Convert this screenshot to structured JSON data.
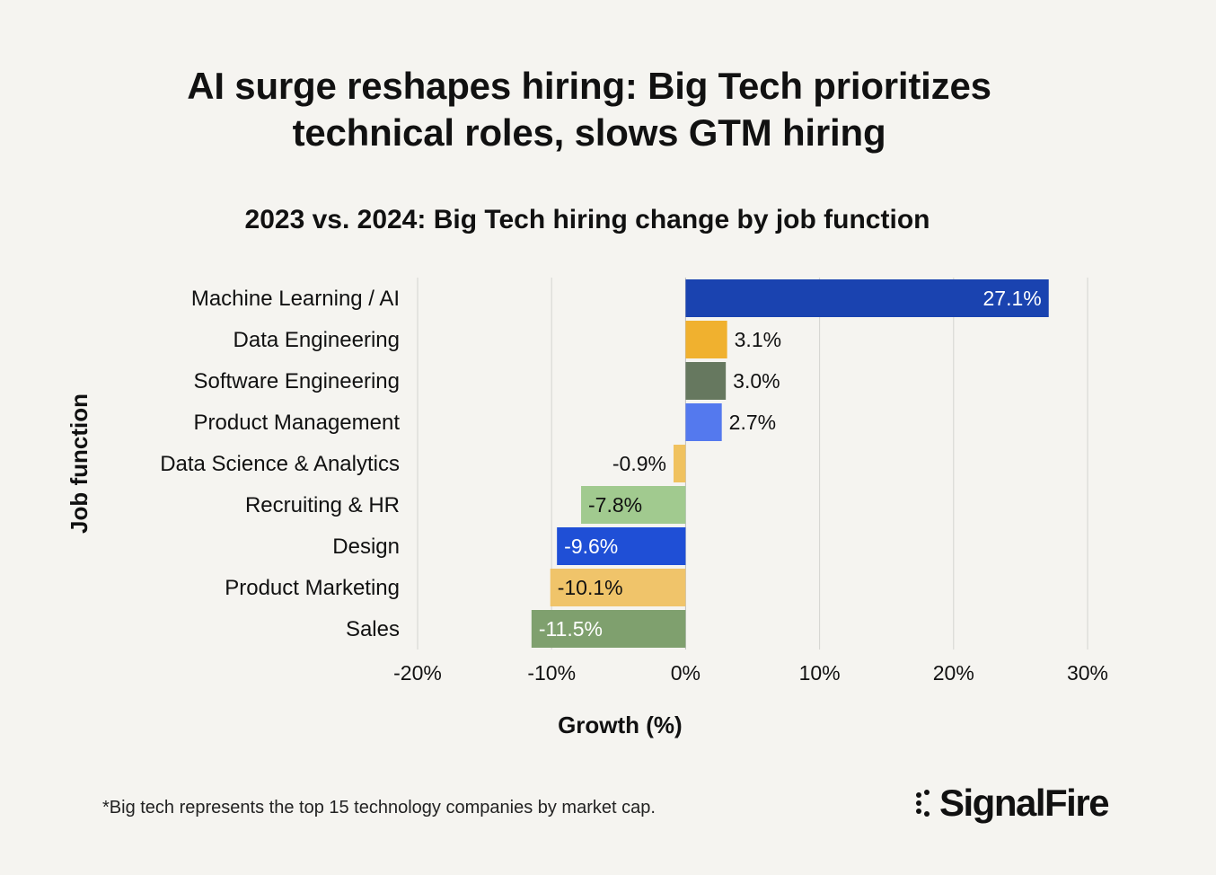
{
  "title_line1": "AI surge reshapes hiring: Big Tech prioritizes",
  "title_line2": "technical roles, slows GTM hiring",
  "subtitle": "2023 vs. 2024: Big Tech hiring change by job function",
  "footnote": "*Big tech represents the top 15 technology companies by market cap.",
  "logo_text": "SignalFire",
  "chart_data": {
    "type": "bar",
    "orientation": "horizontal",
    "xlabel": "Growth (%)",
    "ylabel": "Job function",
    "xlim": [
      -20,
      30
    ],
    "xticks": [
      "-20%",
      "-10%",
      "0%",
      "10%",
      "20%",
      "30%"
    ],
    "xtick_values": [
      -20,
      -10,
      0,
      10,
      20,
      30
    ],
    "grid": "vertical",
    "categories": [
      "Machine Learning / AI",
      "Data Engineering",
      "Software Engineering",
      "Product Management",
      "Data Science & Analytics",
      "Recruiting & HR",
      "Design",
      "Product Marketing",
      "Sales"
    ],
    "values": [
      27.1,
      3.1,
      3.0,
      2.7,
      -0.9,
      -7.8,
      -9.6,
      -10.1,
      -11.5
    ],
    "labels": [
      "27.1%",
      "3.1%",
      "3.0%",
      "2.7%",
      "-0.9%",
      "-7.8%",
      "-9.6%",
      "-10.1%",
      "-11.5%"
    ],
    "colors": [
      "#1a43b0",
      "#f0b12f",
      "#66785f",
      "#5479ee",
      "#f0c25f",
      "#a1ca8f",
      "#1f4fd6",
      "#f0c46a",
      "#7fa06e"
    ],
    "label_colors": [
      "#ffffff",
      "#111111",
      "#111111",
      "#111111",
      "#111111",
      "#111111",
      "#ffffff",
      "#111111",
      "#ffffff"
    ]
  }
}
